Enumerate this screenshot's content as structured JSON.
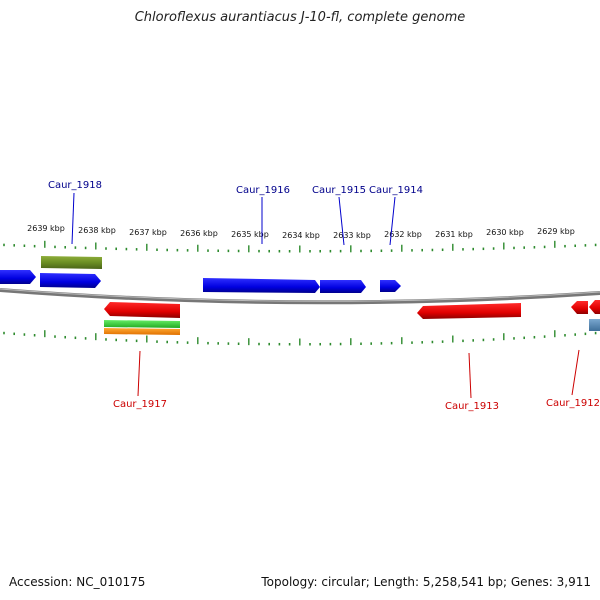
{
  "title": "Chloroflexus aurantiacus J-10-fl, complete genome",
  "footer": {
    "accession": "Accession: NC_010175",
    "summary": "Topology: circular; Length: 5,258,541 bp; Genes: 3,911"
  },
  "scale": {
    "unit": "kbp",
    "labels": [
      "2639 kbp",
      "2638 kbp",
      "2637 kbp",
      "2636 kbp",
      "2635 kbp",
      "2634 kbp",
      "2633 kbp",
      "2632 kbp",
      "2631 kbp",
      "2630 kbp",
      "2629 kbp"
    ]
  },
  "genes": [
    {
      "name": "Caur_1918",
      "strand": "plus",
      "color": "#00008b"
    },
    {
      "name": "Caur_1916",
      "strand": "plus",
      "color": "#00008b"
    },
    {
      "name": "Caur_1915",
      "strand": "plus",
      "color": "#00008b"
    },
    {
      "name": "Caur_1914",
      "strand": "plus",
      "color": "#00008b"
    },
    {
      "name": "Caur_1917",
      "strand": "minus",
      "color": "#cc0000"
    },
    {
      "name": "Caur_1913",
      "strand": "minus",
      "color": "#cc0000"
    },
    {
      "name": "Caur_1912",
      "strand": "minus",
      "color": "#cc0000"
    }
  ],
  "colors": {
    "plus_strand": "#0000ee",
    "minus_strand": "#ee0000",
    "backbone": "#888888",
    "ticks": "#2e8b2e",
    "rna": "#6b8e23",
    "cds_green": "#33cc33",
    "cds_orange": "#ff8c00",
    "other": "#4682b4"
  }
}
